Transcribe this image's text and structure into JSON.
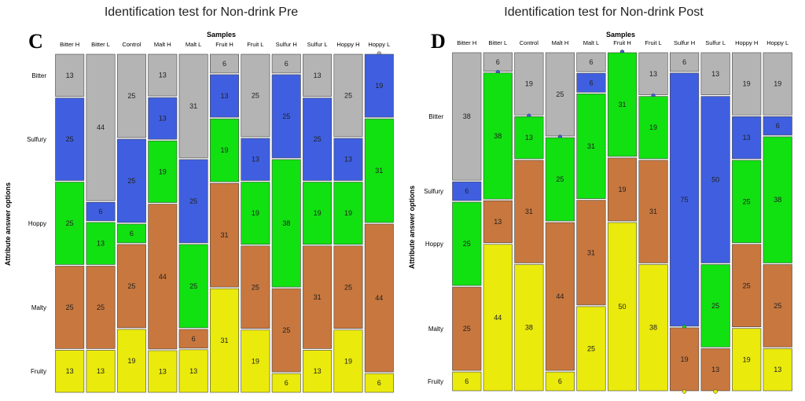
{
  "page": {
    "background": "#ffffff"
  },
  "colors": {
    "Bitter": "#b4b4b4",
    "Sulfury": "#3f5fe0",
    "Hoppy": "#11e011",
    "Malty": "#c8773e",
    "Fruity": "#eaea0c",
    "marker": "#4a6ab0"
  },
  "chart_data": [
    {
      "type": "mosaic",
      "panel_letter": "C",
      "title": "Identification test for Non-drink Pre",
      "xlabel": "Samples",
      "ylabel": "Attribute answer options",
      "categories": [
        "Bitter H",
        "Bitter L",
        "Control",
        "Malt H",
        "Malt L",
        "Fruit H",
        "Fruit L",
        "Sulfur H",
        "Sulfur L",
        "Hoppy H",
        "Hoppy L"
      ],
      "attributes": [
        "Bitter",
        "Sulfury",
        "Hoppy",
        "Malty",
        "Fruity"
      ],
      "series": [
        {
          "name": "Bitter",
          "values": [
            13,
            44,
            25,
            13,
            31,
            6,
            25,
            6,
            13,
            25,
            0
          ]
        },
        {
          "name": "Sulfury",
          "values": [
            25,
            6,
            25,
            13,
            25,
            13,
            13,
            25,
            25,
            13,
            19
          ]
        },
        {
          "name": "Hoppy",
          "values": [
            25,
            13,
            6,
            19,
            25,
            19,
            19,
            38,
            19,
            19,
            31
          ]
        },
        {
          "name": "Malty",
          "values": [
            25,
            25,
            25,
            44,
            6,
            31,
            25,
            25,
            31,
            25,
            44
          ]
        },
        {
          "name": "Fruity",
          "values": [
            13,
            13,
            19,
            13,
            13,
            31,
            19,
            6,
            13,
            19,
            6
          ]
        }
      ],
      "ylim": [
        0,
        100
      ]
    },
    {
      "type": "mosaic",
      "panel_letter": "D",
      "title": "Identification test for Non-drink Post",
      "xlabel": "Samples",
      "ylabel": "Attribute answer options",
      "categories": [
        "Bitter H",
        "Bitter L",
        "Control",
        "Malt H",
        "Malt L",
        "Fruit H",
        "Fruit L",
        "Sulfur H",
        "Sulfur L",
        "Hoppy H",
        "Hoppy L"
      ],
      "attributes": [
        "Bitter",
        "Sulfury",
        "Hoppy",
        "Malty",
        "Fruity"
      ],
      "series": [
        {
          "name": "Bitter",
          "values": [
            38,
            6,
            19,
            25,
            6,
            0,
            13,
            6,
            13,
            19,
            19
          ]
        },
        {
          "name": "Sulfury",
          "values": [
            6,
            0,
            0,
            0,
            6,
            0,
            0,
            75,
            50,
            13,
            6
          ]
        },
        {
          "name": "Hoppy",
          "values": [
            25,
            38,
            13,
            25,
            31,
            31,
            19,
            0,
            25,
            25,
            38
          ]
        },
        {
          "name": "Malty",
          "values": [
            25,
            13,
            31,
            44,
            31,
            19,
            31,
            19,
            13,
            25,
            25
          ]
        },
        {
          "name": "Fruity",
          "values": [
            6,
            44,
            38,
            6,
            25,
            50,
            38,
            0,
            0,
            19,
            13
          ]
        }
      ],
      "ylim": [
        0,
        100
      ]
    }
  ]
}
